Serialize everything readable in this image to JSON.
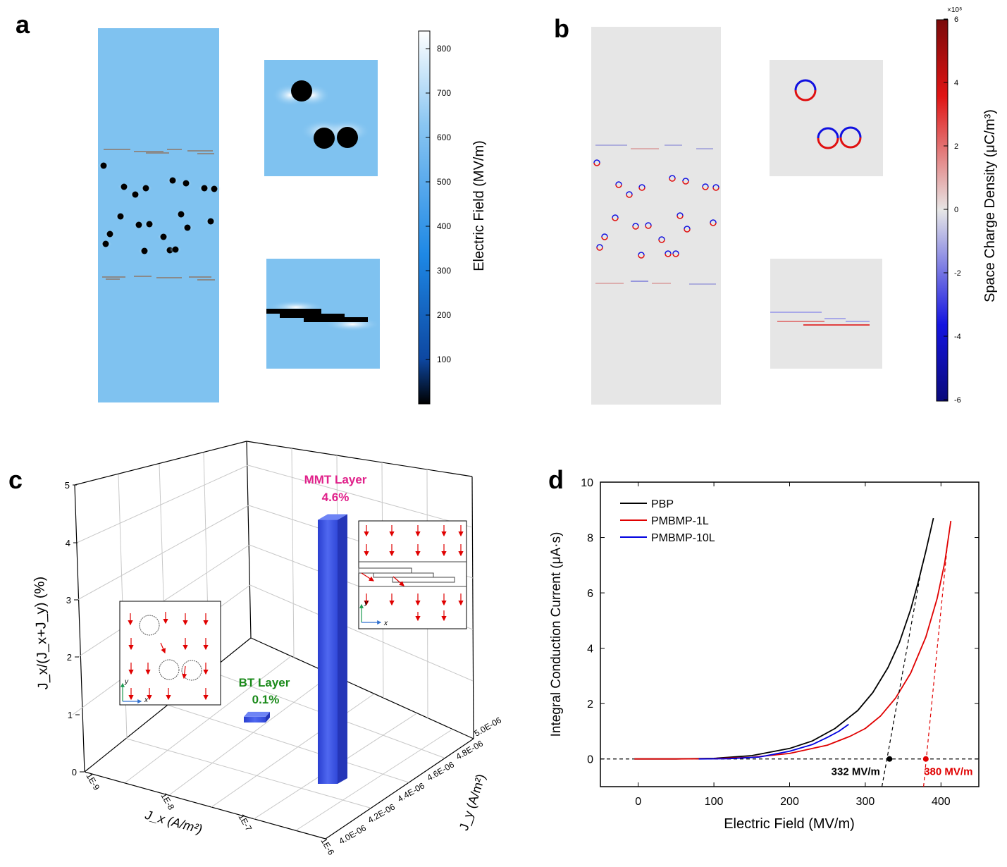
{
  "panels": {
    "a": {
      "letter": "a",
      "colorbar_label": "Electric Field (MV/m)",
      "colorbar_ticks": [
        "100",
        "200",
        "300",
        "400",
        "500",
        "600",
        "700",
        "800"
      ],
      "colors": {
        "low": "#000000",
        "mid": "#1e88e5",
        "high": "#ffffff",
        "field": "#7fc2f0"
      }
    },
    "b": {
      "letter": "b",
      "colorbar_label": "Space Charge Density (μC/m³)",
      "colorbar_ticks": [
        "-6",
        "-4",
        "-2",
        "0",
        "2",
        "4",
        "6"
      ],
      "colorbar_exponent": "×10⁸",
      "colors": {
        "neg": "#0000a0",
        "zero": "#e6e6e6",
        "pos": "#a00000",
        "field": "#e6e6e6"
      }
    },
    "c": {
      "letter": "c",
      "zlabel": "J_x/(J_x+J_y) (%)",
      "xlabel": "J_x (A/m²)",
      "ylabel": "J_y (A/m²)",
      "z_ticks": [
        "0",
        "1",
        "2",
        "3",
        "4",
        "5"
      ],
      "x_ticks": [
        "1E-9",
        "1E-8",
        "1E-7",
        "1E-6"
      ],
      "y_ticks": [
        "4.0E-06",
        "4.2E-06",
        "4.4E-06",
        "4.6E-06",
        "4.8E-06",
        "5.0E-06"
      ],
      "mmt_label": "MMT Layer",
      "mmt_value_label": "4.6%",
      "bt_label": "BT Layer",
      "bt_value_label": "0.1%",
      "inset_axis_x": "x",
      "inset_axis_y": "y",
      "colors": {
        "mmt": "#e0218a",
        "bt": "#1a8a1a",
        "bar": "#3b54e0"
      }
    },
    "d": {
      "letter": "d",
      "xlabel": "Electric Field (MV/m)",
      "ylabel": "Integral Conduction Current (μA·s)",
      "annotation_pbp": "332 MV/m",
      "annotation_1l": "380 MV/m"
    }
  },
  "chart_data": [
    {
      "type": "bar",
      "panel": "c",
      "categories": [
        "BT Layer",
        "MMT Layer"
      ],
      "series": [
        {
          "values": [
            0.1,
            4.6
          ]
        }
      ],
      "zlim": [
        0,
        5
      ],
      "grid": true
    },
    {
      "type": "line",
      "panel": "d",
      "xlim": [
        -50,
        450
      ],
      "ylim": [
        -1,
        10
      ],
      "x_ticks": [
        0,
        100,
        200,
        300,
        400
      ],
      "y_ticks": [
        0,
        2,
        4,
        6,
        8,
        10
      ],
      "legend_position": "top-left",
      "series": [
        {
          "name": "PBP",
          "color": "#000000",
          "x": [
            -5,
            50,
            100,
            150,
            200,
            230,
            260,
            290,
            310,
            330,
            345,
            360,
            370,
            380,
            390
          ],
          "y": [
            0,
            0,
            0.02,
            0.12,
            0.38,
            0.65,
            1.1,
            1.75,
            2.4,
            3.3,
            4.2,
            5.4,
            6.4,
            7.5,
            8.7
          ]
        },
        {
          "name": "PMBMP-1L",
          "color": "#e00000",
          "x": [
            -5,
            50,
            100,
            150,
            200,
            250,
            280,
            300,
            320,
            340,
            360,
            380,
            395,
            405,
            413
          ],
          "y": [
            0,
            0,
            0.01,
            0.06,
            0.2,
            0.5,
            0.82,
            1.1,
            1.55,
            2.2,
            3.1,
            4.4,
            5.8,
            7.1,
            8.6
          ]
        },
        {
          "name": "PMBMP-10L",
          "color": "#0000e0",
          "x": [
            80,
            120,
            160,
            200,
            230,
            250,
            265,
            278
          ],
          "y": [
            0,
            0.01,
            0.07,
            0.28,
            0.52,
            0.78,
            1.0,
            1.25
          ]
        }
      ],
      "annotations": [
        {
          "text": "332 MV/m",
          "x": 332,
          "y": 0,
          "color": "#000000"
        },
        {
          "text": "380 MV/m",
          "x": 380,
          "y": 0,
          "color": "#e00000"
        }
      ]
    }
  ]
}
